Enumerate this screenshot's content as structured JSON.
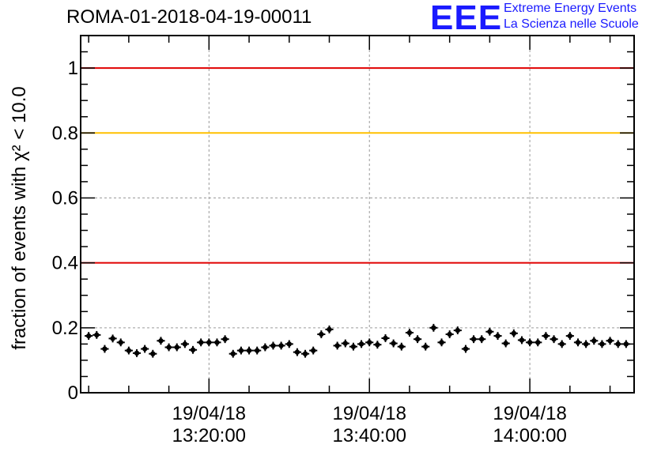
{
  "header": {
    "run_title": "ROMA-01-2018-04-19-00011",
    "logo_text": "EEE",
    "logo_line1": "Extreme Energy Events",
    "logo_line2": "La Scienza nelle Scuole"
  },
  "chart_data": {
    "type": "scatter",
    "title": "ROMA-01-2018-04-19-00011",
    "ylabel": "fraction of events with χ² < 10.0",
    "ylim": [
      0,
      1.1
    ],
    "yticks": [
      0,
      0.2,
      0.4,
      0.6,
      0.8,
      1
    ],
    "ytick_labels": [
      "0",
      "0.2",
      "0.4",
      "0.6",
      "0.8",
      "1"
    ],
    "xlim": [
      "19/04/18 13:04:00",
      "19/04/18 14:13:00"
    ],
    "xticks": [
      {
        "time": "19/04/18 13:20:00",
        "date": "19/04/18",
        "clock": "13:20:00"
      },
      {
        "time": "19/04/18 13:40:00",
        "date": "19/04/18",
        "clock": "13:40:00"
      },
      {
        "time": "19/04/18 14:00:00",
        "date": "19/04/18",
        "clock": "14:00:00"
      }
    ],
    "grid": true,
    "reference_lines": [
      {
        "y": 1.0,
        "color": "#e00000"
      },
      {
        "y": 0.8,
        "color": "#ffc000"
      },
      {
        "y": 0.4,
        "color": "#e00000"
      }
    ],
    "series": [
      {
        "color": "#000000",
        "x": [
          "13:05:00",
          "13:06:00",
          "13:07:00",
          "13:08:00",
          "13:09:00",
          "13:10:00",
          "13:11:00",
          "13:12:00",
          "13:13:00",
          "13:14:00",
          "13:15:00",
          "13:16:00",
          "13:17:00",
          "13:18:00",
          "13:19:00",
          "13:20:00",
          "13:21:00",
          "13:22:00",
          "13:23:00",
          "13:24:00",
          "13:25:00",
          "13:26:00",
          "13:27:00",
          "13:28:00",
          "13:29:00",
          "13:30:00",
          "13:31:00",
          "13:32:00",
          "13:33:00",
          "13:34:00",
          "13:35:00",
          "13:36:00",
          "13:37:00",
          "13:38:00",
          "13:39:00",
          "13:40:00",
          "13:41:00",
          "13:42:00",
          "13:43:00",
          "13:44:00",
          "13:45:00",
          "13:46:00",
          "13:47:00",
          "13:48:00",
          "13:49:00",
          "13:50:00",
          "13:51:00",
          "13:52:00",
          "13:53:00",
          "13:54:00",
          "13:55:00",
          "13:56:00",
          "13:57:00",
          "13:58:00",
          "13:59:00",
          "14:00:00",
          "14:01:00",
          "14:02:00",
          "14:03:00",
          "14:04:00",
          "14:05:00",
          "14:06:00",
          "14:07:00",
          "14:08:00",
          "14:09:00",
          "14:10:00",
          "14:11:00",
          "14:12:00"
        ],
        "y": [
          0.175,
          0.178,
          0.135,
          0.167,
          0.155,
          0.13,
          0.122,
          0.135,
          0.12,
          0.16,
          0.14,
          0.14,
          0.15,
          0.132,
          0.155,
          0.155,
          0.155,
          0.165,
          0.12,
          0.13,
          0.13,
          0.13,
          0.14,
          0.145,
          0.145,
          0.15,
          0.125,
          0.12,
          0.13,
          0.18,
          0.195,
          0.145,
          0.152,
          0.142,
          0.15,
          0.155,
          0.148,
          0.168,
          0.152,
          0.142,
          0.185,
          0.165,
          0.142,
          0.2,
          0.155,
          0.18,
          0.192,
          0.135,
          0.165,
          0.165,
          0.188,
          0.175,
          0.152,
          0.183,
          0.162,
          0.155,
          0.155,
          0.175,
          0.165,
          0.15,
          0.175,
          0.155,
          0.15,
          0.16,
          0.15,
          0.16,
          0.15,
          0.15
        ],
        "yerr": 0.012
      }
    ]
  }
}
